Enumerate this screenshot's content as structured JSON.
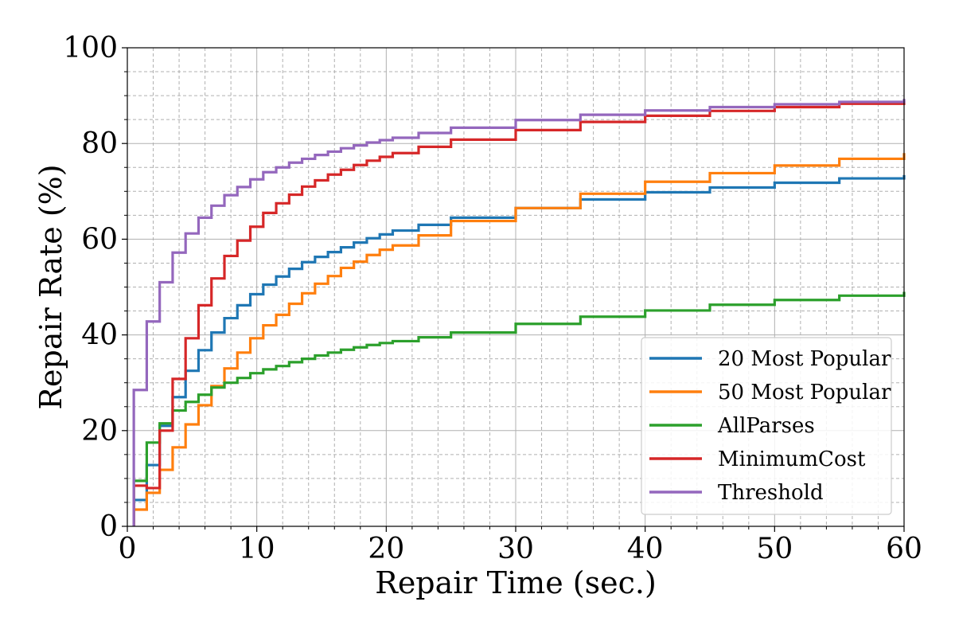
{
  "chart_data": {
    "type": "line",
    "step": true,
    "xlabel": "Repair Time (sec.)",
    "ylabel": "Repair Rate (%)",
    "xlim": [
      0,
      60
    ],
    "ylim": [
      0,
      100
    ],
    "xticks": [
      0,
      10,
      20,
      30,
      40,
      50,
      60
    ],
    "yticks": [
      0,
      20,
      40,
      60,
      80,
      100
    ],
    "grid": true,
    "minor_grid": true,
    "legend_position": "lower-right",
    "series": [
      {
        "name": "20 Most Popular",
        "color": "#1f77b4",
        "x": [
          0.5,
          1.5,
          2.5,
          3.5,
          4.5,
          5.5,
          6.5,
          7.5,
          8.5,
          9.5,
          10.5,
          11.5,
          12.5,
          13.5,
          14.5,
          15.5,
          16.5,
          17.5,
          18.5,
          19.5,
          20.5,
          22.5,
          25,
          30,
          35,
          40,
          45,
          50,
          55,
          60
        ],
        "y": [
          5.5,
          12.8,
          21.0,
          27.0,
          32.5,
          36.8,
          40.5,
          43.5,
          46.2,
          48.5,
          50.5,
          52.2,
          53.8,
          55.2,
          56.3,
          57.3,
          58.3,
          59.3,
          60.2,
          61.0,
          61.8,
          63.0,
          64.5,
          66.5,
          68.3,
          69.8,
          70.8,
          71.8,
          72.7,
          73.4
        ]
      },
      {
        "name": "50 Most Popular",
        "color": "#ff7f0e",
        "x": [
          0.5,
          1.5,
          2.5,
          3.5,
          4.5,
          5.5,
          6.5,
          7.5,
          8.5,
          9.5,
          10.5,
          11.5,
          12.5,
          13.5,
          14.5,
          15.5,
          16.5,
          17.5,
          18.5,
          19.5,
          20.5,
          22.5,
          25,
          30,
          35,
          40,
          45,
          50,
          55,
          60
        ],
        "y": [
          3.5,
          7.0,
          11.8,
          16.5,
          21.3,
          25.3,
          29.3,
          33.0,
          36.3,
          39.3,
          42.0,
          44.2,
          46.5,
          48.7,
          50.7,
          52.3,
          54.0,
          55.3,
          56.7,
          57.8,
          58.7,
          60.8,
          63.8,
          66.5,
          69.5,
          72.0,
          73.8,
          75.4,
          76.8,
          78.0
        ]
      },
      {
        "name": "AllParses",
        "color": "#2ca02c",
        "x": [
          0.5,
          1.5,
          2.5,
          3.5,
          4.5,
          5.5,
          6.5,
          7.5,
          8.5,
          9.5,
          10.5,
          11.5,
          12.5,
          13.5,
          14.5,
          15.5,
          16.5,
          17.5,
          18.5,
          19.5,
          20.5,
          22.5,
          25,
          30,
          35,
          40,
          45,
          50,
          55,
          60
        ],
        "y": [
          9.5,
          17.5,
          21.5,
          24.2,
          26.0,
          27.5,
          29.0,
          30.0,
          31.0,
          32.0,
          32.8,
          33.5,
          34.3,
          35.0,
          35.7,
          36.3,
          36.9,
          37.4,
          37.9,
          38.3,
          38.7,
          39.5,
          40.5,
          42.3,
          43.8,
          45.1,
          46.3,
          47.3,
          48.2,
          49.0
        ]
      },
      {
        "name": "MinimumCost",
        "color": "#d62728",
        "x": [
          0.5,
          1.5,
          2.5,
          3.5,
          4.5,
          5.5,
          6.5,
          7.5,
          8.5,
          9.5,
          10.5,
          11.5,
          12.5,
          13.5,
          14.5,
          15.5,
          16.5,
          17.5,
          18.5,
          19.5,
          20.5,
          22.5,
          25,
          30,
          35,
          40,
          45,
          50,
          55,
          60
        ],
        "y": [
          8.5,
          8.0,
          20.0,
          30.8,
          39.3,
          46.2,
          51.8,
          56.5,
          59.7,
          62.6,
          65.5,
          67.5,
          69.3,
          71.0,
          72.3,
          73.5,
          74.5,
          75.5,
          76.4,
          77.2,
          78.0,
          79.3,
          80.8,
          82.8,
          84.5,
          85.8,
          86.8,
          87.6,
          88.3,
          88.9
        ]
      },
      {
        "name": "Threshold",
        "color": "#9467bd",
        "x": [
          0.5,
          1.5,
          2.5,
          3.5,
          4.5,
          5.5,
          6.5,
          7.5,
          8.5,
          9.5,
          10.5,
          11.5,
          12.5,
          13.5,
          14.5,
          15.5,
          16.5,
          17.5,
          18.5,
          19.5,
          20.5,
          22.5,
          25,
          30,
          35,
          40,
          45,
          50,
          55,
          60
        ],
        "y": [
          28.5,
          42.8,
          51.0,
          57.2,
          61.2,
          64.5,
          67.0,
          69.2,
          70.9,
          72.5,
          74.0,
          75.0,
          76.0,
          76.8,
          77.6,
          78.3,
          79.0,
          79.6,
          80.2,
          80.7,
          81.2,
          82.2,
          83.3,
          84.9,
          86.0,
          86.9,
          87.6,
          88.2,
          88.7,
          89.3
        ]
      }
    ]
  }
}
